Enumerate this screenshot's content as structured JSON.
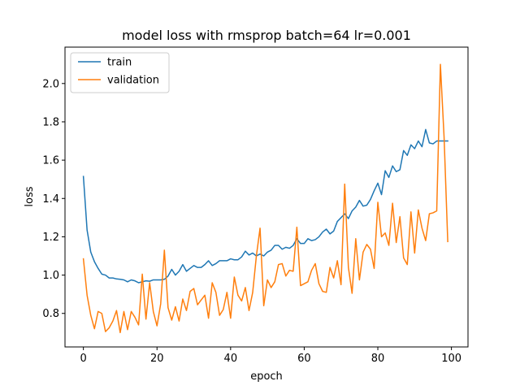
{
  "chart_data": {
    "type": "line",
    "title": "model loss with rmsprop batch=64 lr=0.001",
    "xlabel": "epoch",
    "ylabel": "loss",
    "xlim": [
      -5,
      104.5
    ],
    "ylim": [
      0.625,
      2.19
    ],
    "xticks": [
      0,
      20,
      40,
      60,
      80,
      100
    ],
    "yticks": [
      0.8,
      1.0,
      1.2,
      1.4,
      1.6,
      1.8,
      2.0
    ],
    "xtick_labels": [
      "0",
      "20",
      "40",
      "60",
      "80",
      "100"
    ],
    "ytick_labels": [
      "0.8",
      "1.0",
      "1.2",
      "1.4",
      "1.6",
      "1.8",
      "2.0"
    ],
    "grid": false,
    "legend_position": "top-left",
    "x": [
      0,
      1,
      2,
      3,
      4,
      5,
      6,
      7,
      8,
      9,
      10,
      11,
      12,
      13,
      14,
      15,
      16,
      17,
      18,
      19,
      20,
      21,
      22,
      23,
      24,
      25,
      26,
      27,
      28,
      29,
      30,
      31,
      32,
      33,
      34,
      35,
      36,
      37,
      38,
      39,
      40,
      41,
      42,
      43,
      44,
      45,
      46,
      47,
      48,
      49,
      50,
      51,
      52,
      53,
      54,
      55,
      56,
      57,
      58,
      59,
      60,
      61,
      62,
      63,
      64,
      65,
      66,
      67,
      68,
      69,
      70,
      71,
      72,
      73,
      74,
      75,
      76,
      77,
      78,
      79,
      80,
      81,
      82,
      83,
      84,
      85,
      86,
      87,
      88,
      89,
      90,
      91,
      92,
      93,
      94,
      95,
      96,
      97,
      98,
      99
    ],
    "series": [
      {
        "name": "train",
        "color": "#1f77b4",
        "values": [
          1.515,
          1.235,
          1.12,
          1.07,
          1.035,
          1.005,
          1.0,
          0.985,
          0.985,
          0.98,
          0.978,
          0.975,
          0.965,
          0.975,
          0.97,
          0.96,
          0.965,
          0.97,
          0.968,
          0.975,
          0.975,
          0.975,
          0.978,
          0.995,
          1.03,
          1.0,
          1.02,
          1.055,
          1.02,
          1.035,
          1.05,
          1.04,
          1.04,
          1.055,
          1.075,
          1.05,
          1.06,
          1.075,
          1.075,
          1.075,
          1.085,
          1.08,
          1.08,
          1.095,
          1.125,
          1.105,
          1.115,
          1.1,
          1.11,
          1.1,
          1.12,
          1.13,
          1.155,
          1.155,
          1.135,
          1.145,
          1.14,
          1.155,
          1.19,
          1.165,
          1.165,
          1.19,
          1.18,
          1.185,
          1.2,
          1.225,
          1.24,
          1.215,
          1.23,
          1.28,
          1.3,
          1.32,
          1.295,
          1.335,
          1.355,
          1.39,
          1.36,
          1.365,
          1.395,
          1.44,
          1.48,
          1.42,
          1.545,
          1.51,
          1.57,
          1.54,
          1.55,
          1.65,
          1.625,
          1.68,
          1.66,
          1.7,
          1.67,
          1.76,
          1.69,
          1.685,
          1.7,
          1.7,
          1.7,
          1.7
        ]
      },
      {
        "name": "validation",
        "color": "#ff7f0e",
        "values": [
          1.085,
          0.895,
          0.79,
          0.72,
          0.81,
          0.8,
          0.705,
          0.725,
          0.76,
          0.815,
          0.7,
          0.81,
          0.715,
          0.81,
          0.78,
          0.74,
          1.005,
          0.77,
          0.96,
          0.81,
          0.735,
          0.85,
          1.13,
          0.83,
          0.765,
          0.835,
          0.76,
          0.875,
          0.815,
          0.915,
          0.93,
          0.845,
          0.87,
          0.895,
          0.775,
          0.96,
          0.91,
          0.79,
          0.82,
          0.91,
          0.775,
          0.99,
          0.895,
          0.865,
          0.935,
          0.815,
          0.91,
          1.1,
          1.245,
          0.84,
          0.975,
          0.935,
          0.965,
          1.055,
          1.06,
          0.995,
          1.025,
          1.02,
          1.25,
          0.945,
          0.955,
          0.965,
          1.025,
          1.06,
          0.955,
          0.915,
          0.91,
          1.04,
          0.985,
          1.075,
          0.95,
          1.475,
          1.04,
          0.905,
          1.19,
          0.975,
          1.12,
          1.16,
          1.135,
          1.035,
          1.38,
          1.2,
          1.22,
          1.155,
          1.375,
          1.17,
          1.305,
          1.09,
          1.055,
          1.33,
          1.115,
          1.34,
          1.245,
          1.18,
          1.32,
          1.325,
          1.335,
          2.1,
          1.72,
          1.175
        ]
      }
    ]
  }
}
